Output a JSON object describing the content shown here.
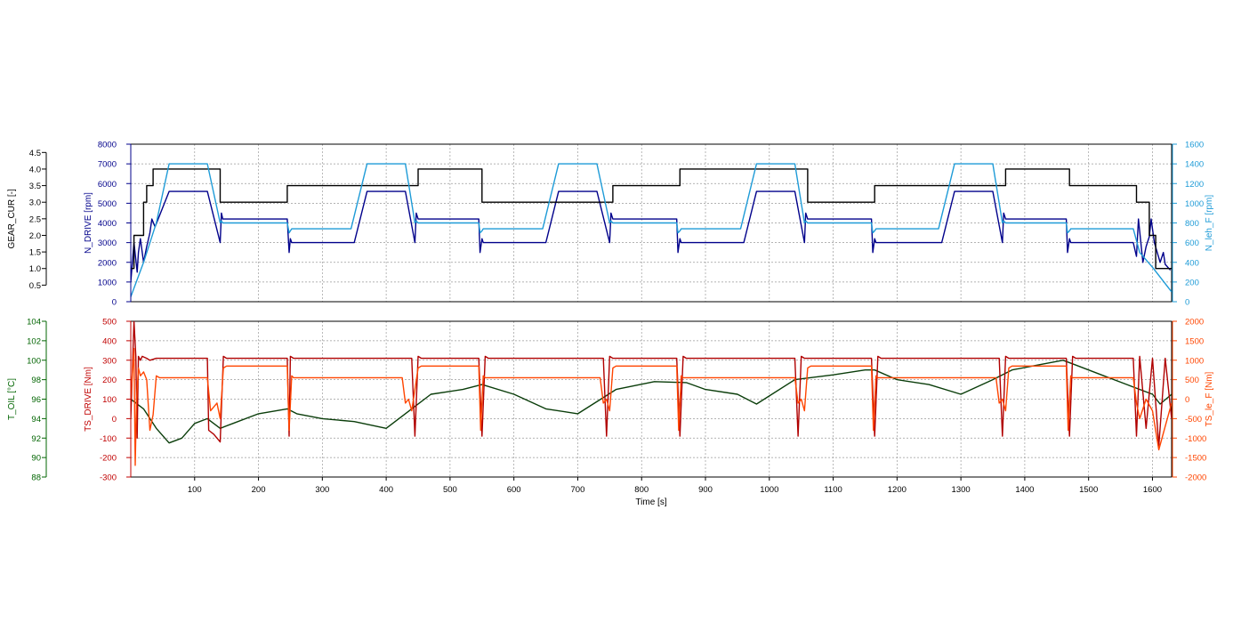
{
  "chart_data": [
    {
      "type": "line",
      "panel": "top",
      "xlabel": "Time [s]",
      "xlim": [
        0,
        1630
      ],
      "x_ticks": [
        100,
        200,
        300,
        400,
        500,
        600,
        700,
        800,
        900,
        1000,
        1100,
        1200,
        1300,
        1400,
        1500,
        1600
      ],
      "grid": true,
      "axes": [
        {
          "id": "n_drive",
          "label": "N_DRIVE [rpm]",
          "side": "left",
          "color": "#00008b",
          "range": [
            0,
            8000
          ],
          "ticks": [
            0,
            1000,
            2000,
            3000,
            4000,
            5000,
            6000,
            7000,
            8000
          ]
        },
        {
          "id": "gear",
          "label": "GEAR_CUR [-]",
          "side": "left-outer",
          "color": "#000000",
          "range": [
            0,
            4.75
          ],
          "ticks": [
            0.5,
            1.0,
            1.5,
            2.0,
            2.5,
            3.0,
            3.5,
            4.0,
            4.5
          ]
        },
        {
          "id": "n_leh",
          "label": "N_leh_F [rpm]",
          "side": "right",
          "color": "#1e9bd7",
          "range": [
            0,
            1600
          ],
          "ticks": [
            0,
            200,
            400,
            600,
            800,
            1000,
            1200,
            1400,
            1600
          ]
        }
      ],
      "series": [
        {
          "name": "N_DRIVE [rpm]",
          "axis": "n_drive",
          "color": "#00008b",
          "x": [
            0,
            5,
            10,
            12,
            15,
            20,
            25,
            30,
            33,
            38,
            60,
            120,
            140,
            142,
            144,
            148,
            245,
            248,
            250,
            252,
            255,
            350,
            370,
            430,
            445,
            447,
            450,
            455,
            545,
            547,
            550,
            552,
            555,
            650,
            670,
            730,
            750,
            752,
            755,
            760,
            855,
            857,
            860,
            862,
            865,
            960,
            980,
            1040,
            1055,
            1057,
            1060,
            1065,
            1160,
            1162,
            1165,
            1167,
            1170,
            1270,
            1290,
            1350,
            1365,
            1367,
            1370,
            1375,
            1465,
            1467,
            1470,
            1472,
            1475,
            1570,
            1575,
            1578,
            1585,
            1590,
            1595,
            1598,
            1603,
            1612,
            1617,
            1620,
            1628
          ],
          "y": [
            1000,
            3000,
            1500,
            2500,
            3200,
            2000,
            2800,
            3500,
            4200,
            3800,
            5600,
            5600,
            3000,
            4500,
            4200,
            4200,
            4200,
            2500,
            3200,
            3000,
            3000,
            3000,
            5600,
            5600,
            3000,
            4500,
            4200,
            4200,
            4200,
            2500,
            3200,
            3000,
            3000,
            3000,
            5600,
            5600,
            3000,
            4500,
            4200,
            4200,
            4200,
            2500,
            3200,
            3000,
            3000,
            3000,
            5600,
            5600,
            3000,
            4500,
            4200,
            4200,
            4200,
            2500,
            3200,
            3000,
            3000,
            3000,
            5600,
            5600,
            3000,
            4500,
            4200,
            4200,
            4200,
            2500,
            3200,
            3000,
            3000,
            3000,
            2300,
            4200,
            2000,
            2800,
            3300,
            4200,
            3000,
            2000,
            2500,
            1900,
            1600
          ]
        },
        {
          "name": "GEAR_CUR [-]",
          "axis": "gear",
          "color": "#000000",
          "x": [
            0,
            5,
            5,
            20,
            20,
            25,
            25,
            35,
            35,
            140,
            140,
            245,
            245,
            450,
            450,
            550,
            550,
            755,
            755,
            860,
            860,
            1060,
            1060,
            1165,
            1165,
            1370,
            1370,
            1470,
            1470,
            1575,
            1575,
            1595,
            1595,
            1605,
            1605,
            1630
          ],
          "y": [
            1,
            1,
            2,
            2,
            3,
            3,
            3.5,
            3.5,
            4,
            4,
            3,
            3,
            3.5,
            3.5,
            4,
            4,
            3,
            3,
            3.5,
            3.5,
            4,
            4,
            3,
            3,
            3.5,
            3.5,
            4,
            4,
            3.5,
            3.5,
            3,
            3,
            2,
            2,
            1,
            1
          ]
        },
        {
          "name": "N_leh_F [rpm]",
          "axis": "n_leh",
          "color": "#1e9bd7",
          "x": [
            0,
            20,
            40,
            60,
            120,
            140,
            142,
            144,
            148,
            245,
            248,
            250,
            252,
            255,
            345,
            370,
            430,
            445,
            447,
            450,
            455,
            545,
            547,
            550,
            552,
            555,
            645,
            670,
            730,
            750,
            752,
            755,
            760,
            855,
            857,
            860,
            862,
            865,
            955,
            980,
            1040,
            1055,
            1057,
            1060,
            1065,
            1160,
            1162,
            1165,
            1167,
            1170,
            1265,
            1290,
            1350,
            1365,
            1367,
            1370,
            1375,
            1465,
            1467,
            1470,
            1472,
            1475,
            1570,
            1580,
            1600,
            1630
          ],
          "y": [
            50,
            400,
            800,
            1400,
            1400,
            800,
            820,
            800,
            800,
            800,
            700,
            720,
            740,
            740,
            740,
            1400,
            1400,
            800,
            820,
            800,
            800,
            800,
            700,
            720,
            740,
            740,
            740,
            1400,
            1400,
            800,
            820,
            800,
            800,
            800,
            700,
            720,
            740,
            740,
            740,
            1400,
            1400,
            800,
            820,
            800,
            800,
            800,
            700,
            720,
            740,
            740,
            740,
            1400,
            1400,
            800,
            820,
            800,
            800,
            800,
            700,
            720,
            740,
            740,
            740,
            500,
            350,
            100
          ]
        }
      ]
    },
    {
      "type": "line",
      "panel": "bottom",
      "xlabel": "Time [s]",
      "xlim": [
        0,
        1630
      ],
      "x_ticks": [
        100,
        200,
        300,
        400,
        500,
        600,
        700,
        800,
        900,
        1000,
        1100,
        1200,
        1300,
        1400,
        1500,
        1600
      ],
      "grid": true,
      "axes": [
        {
          "id": "ts_drive",
          "label": "TS_DRIVE [Nm]",
          "side": "left",
          "color": "#c00000",
          "range": [
            -300,
            500
          ],
          "ticks": [
            -300,
            -200,
            -100,
            0,
            100,
            200,
            300,
            400,
            500
          ]
        },
        {
          "id": "t_oil",
          "label": "T_OIL [°C]",
          "side": "left-outer",
          "color": "#006400",
          "range": [
            88,
            104
          ],
          "ticks": [
            88,
            90,
            92,
            94,
            96,
            98,
            100,
            102,
            104
          ]
        },
        {
          "id": "ts_leh",
          "label": "TS_le_F [Nm]",
          "side": "right",
          "color": "#ff4500",
          "range": [
            -2000,
            2000
          ],
          "ticks": [
            -2000,
            -1500,
            -1000,
            -500,
            0,
            500,
            1000,
            1500,
            2000
          ]
        }
      ],
      "series": [
        {
          "name": "T_OIL [°C]",
          "axis": "t_oil",
          "color": "#0a3d0a",
          "x": [
            0,
            20,
            40,
            60,
            80,
            100,
            120,
            140,
            160,
            200,
            245,
            260,
            300,
            350,
            400,
            440,
            470,
            520,
            550,
            600,
            650,
            700,
            760,
            820,
            870,
            900,
            950,
            980,
            1040,
            1100,
            1150,
            1165,
            1200,
            1250,
            1300,
            1350,
            1380,
            1420,
            1460,
            1480,
            1520,
            1560,
            1600,
            1612,
            1630
          ],
          "y": [
            96,
            95,
            93,
            91.5,
            92,
            93.5,
            94,
            93,
            93.5,
            94.5,
            95,
            94.5,
            94,
            93.7,
            93,
            95,
            96.5,
            97,
            97.5,
            96.5,
            95,
            94.5,
            97,
            97.8,
            97.7,
            97,
            96.5,
            95.5,
            98,
            98.5,
            99,
            99,
            98,
            97.5,
            96.5,
            98,
            99,
            99.5,
            100,
            99.5,
            98.5,
            97.5,
            96.5,
            95.5,
            96.5
          ]
        },
        {
          "name": "TS_DRIVE [Nm]",
          "axis": "ts_drive",
          "color": "#b00000",
          "x": [
            0,
            5,
            8,
            10,
            12,
            15,
            18,
            25,
            30,
            40,
            50,
            120,
            122,
            130,
            140,
            145,
            150,
            245,
            248,
            250,
            255,
            260,
            440,
            445,
            450,
            455,
            545,
            550,
            555,
            560,
            740,
            745,
            750,
            755,
            855,
            860,
            865,
            870,
            1040,
            1045,
            1050,
            1055,
            1160,
            1165,
            1170,
            1175,
            1360,
            1365,
            1370,
            1375,
            1465,
            1470,
            1475,
            1480,
            1570,
            1575,
            1580,
            1590,
            1600,
            1610,
            1620,
            1630
          ],
          "y": [
            0,
            500,
            320,
            -100,
            320,
            300,
            320,
            310,
            300,
            310,
            310,
            310,
            -60,
            -80,
            -120,
            320,
            310,
            310,
            -90,
            320,
            310,
            310,
            310,
            -90,
            320,
            310,
            310,
            -90,
            320,
            310,
            310,
            -90,
            320,
            310,
            310,
            -90,
            320,
            310,
            310,
            -90,
            320,
            310,
            310,
            -90,
            320,
            310,
            310,
            -90,
            320,
            310,
            310,
            -90,
            320,
            310,
            310,
            -90,
            320,
            -50,
            310,
            -140,
            310,
            0
          ]
        },
        {
          "name": "TS_le_F [Nm]",
          "axis": "ts_leh",
          "color": "#ff4500",
          "x": [
            0,
            5,
            7,
            9,
            12,
            15,
            20,
            25,
            30,
            35,
            40,
            45,
            50,
            120,
            125,
            135,
            140,
            145,
            150,
            245,
            248,
            252,
            255,
            425,
            430,
            435,
            440,
            450,
            455,
            545,
            548,
            552,
            555,
            735,
            740,
            745,
            750,
            755,
            760,
            855,
            858,
            862,
            865,
            1040,
            1045,
            1050,
            1055,
            1060,
            1065,
            1160,
            1163,
            1167,
            1170,
            1355,
            1360,
            1365,
            1370,
            1375,
            1380,
            1465,
            1468,
            1472,
            1475,
            1570,
            1575,
            1580,
            1590,
            1600,
            1610,
            1620,
            1630
          ],
          "y": [
            0,
            1300,
            -1700,
            0,
            800,
            600,
            700,
            500,
            -800,
            -400,
            600,
            550,
            550,
            550,
            -300,
            -100,
            -500,
            800,
            850,
            850,
            -800,
            600,
            550,
            550,
            -100,
            0,
            -300,
            800,
            850,
            850,
            -800,
            600,
            550,
            550,
            -100,
            0,
            -300,
            800,
            850,
            850,
            -800,
            600,
            550,
            550,
            -100,
            0,
            -300,
            800,
            850,
            850,
            -800,
            600,
            550,
            550,
            -100,
            0,
            -300,
            800,
            850,
            850,
            -800,
            600,
            550,
            550,
            -100,
            -500,
            0,
            -300,
            -1300,
            -700,
            -100
          ]
        }
      ]
    }
  ]
}
